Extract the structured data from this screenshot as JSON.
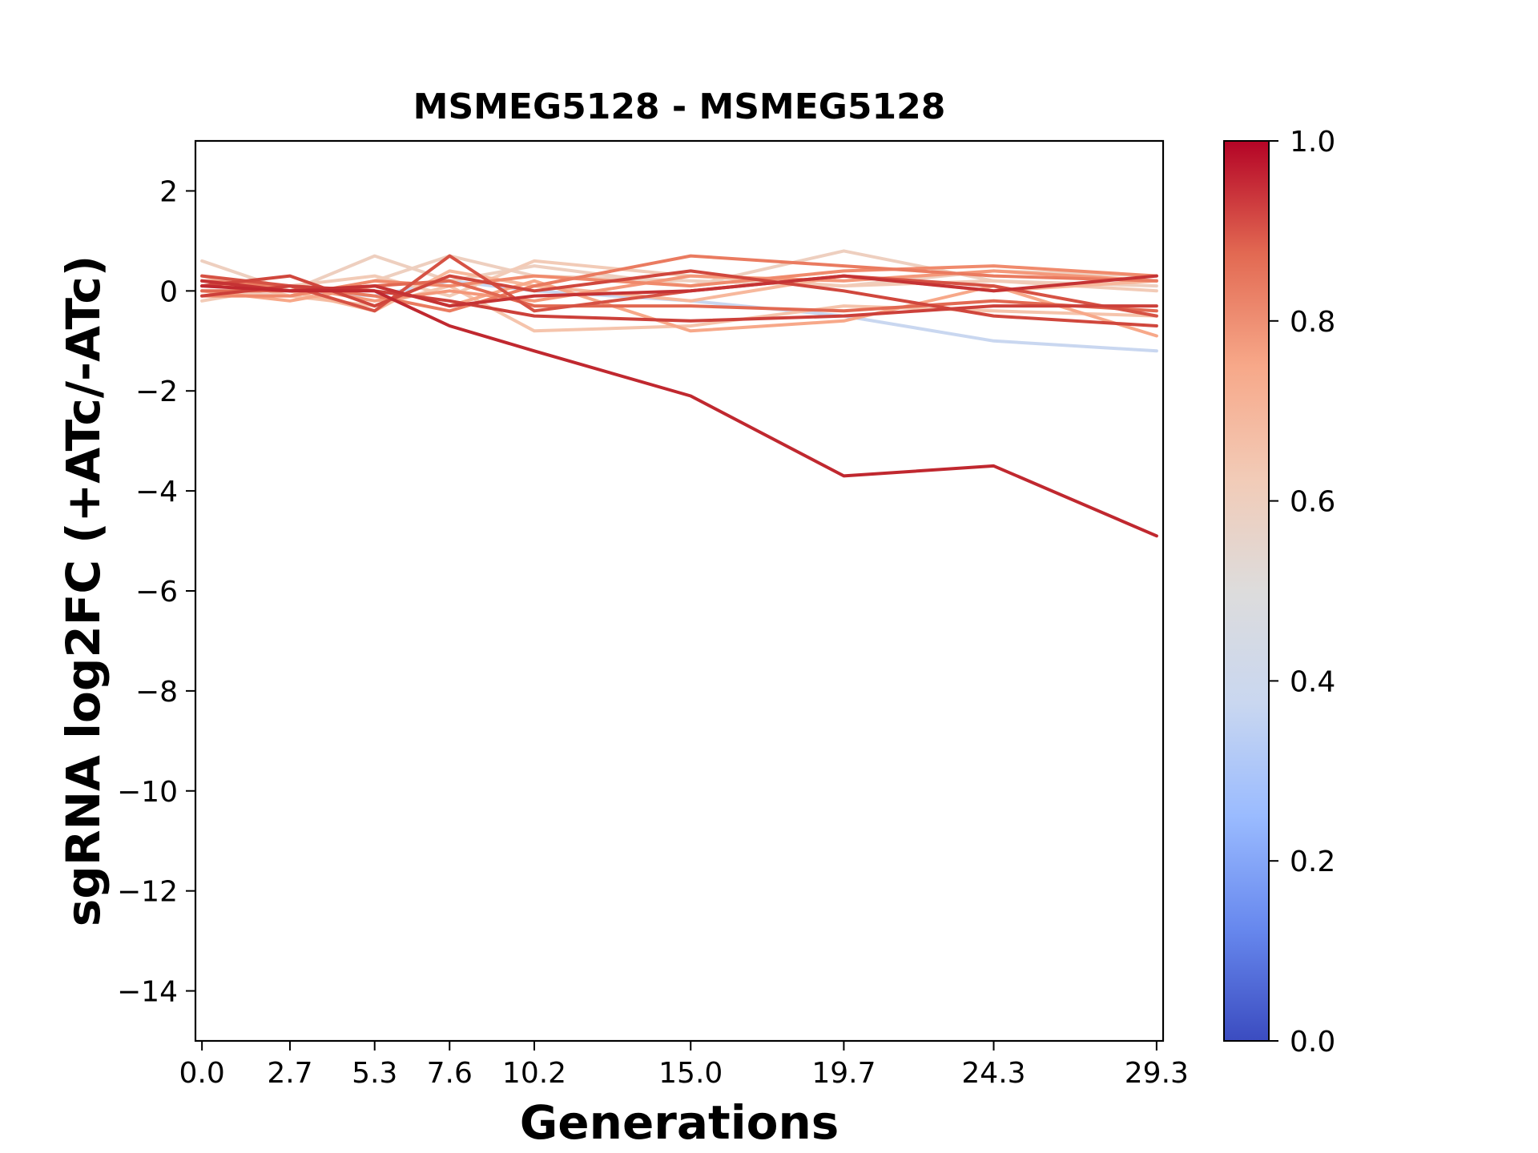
{
  "chart_data": {
    "type": "line",
    "title": "MSMEG5128 - MSMEG5128",
    "xlabel": "Generations",
    "ylabel": "sgRNA log2FC (+ATc/-ATc)",
    "x": [
      0.0,
      2.7,
      5.3,
      7.6,
      10.2,
      15.0,
      19.7,
      24.3,
      29.3
    ],
    "x_tick_labels": [
      "0.0",
      "2.7",
      "5.3",
      "7.6",
      "10.2",
      "15.0",
      "19.7",
      "24.3",
      "29.3"
    ],
    "xlim": [
      -0.2,
      29.5
    ],
    "ylim": [
      -15,
      3
    ],
    "y_ticks": [
      2,
      0,
      -2,
      -4,
      -6,
      -8,
      -10,
      -12,
      -14
    ],
    "y_tick_labels": [
      "2",
      "0",
      "−2",
      "−4",
      "−6",
      "−8",
      "−10",
      "−12",
      "−14"
    ],
    "grid": false,
    "colorbar": {
      "colormap": "coolwarm",
      "range": [
        0.0,
        1.0
      ],
      "tick_values": [
        0.0,
        0.2,
        0.4,
        0.6,
        0.8,
        1.0
      ],
      "tick_labels": [
        "0.0",
        "0.2",
        "0.4",
        "0.6",
        "0.8",
        "1.0"
      ],
      "stops": [
        "#3b4cc0",
        "#6788ee",
        "#9abbff",
        "#c9d7f0",
        "#dddcdc",
        "#f2cbb7",
        "#f7a889",
        "#e26952",
        "#b40426"
      ]
    },
    "series": [
      {
        "color": "#c9d7f0",
        "values": [
          0.1,
          0.0,
          -0.1,
          0.2,
          0.0,
          -0.2,
          -0.5,
          -1.0,
          -1.2
        ]
      },
      {
        "color": "#eecfbf",
        "values": [
          0.6,
          0.0,
          0.7,
          0.2,
          0.5,
          0.1,
          0.8,
          0.2,
          0.1
        ]
      },
      {
        "color": "#eecfbf",
        "values": [
          0.0,
          -0.1,
          0.2,
          0.7,
          0.3,
          0.2,
          0.1,
          0.4,
          0.3
        ]
      },
      {
        "color": "#f2cbb7",
        "values": [
          -0.2,
          0.1,
          0.3,
          -0.1,
          0.6,
          0.3,
          0.1,
          0.2,
          0.0
        ]
      },
      {
        "color": "#f5c4ac",
        "values": [
          0.3,
          -0.1,
          -0.3,
          0.1,
          -0.8,
          -0.7,
          -0.3,
          -0.4,
          -0.5
        ]
      },
      {
        "color": "#f7b89c",
        "values": [
          0.2,
          0.0,
          -0.4,
          0.4,
          0.1,
          -0.2,
          0.3,
          0.0,
          0.2
        ]
      },
      {
        "color": "#f7a889",
        "values": [
          0.0,
          -0.2,
          0.1,
          -0.3,
          0.2,
          -0.8,
          -0.6,
          0.1,
          -0.9
        ]
      },
      {
        "color": "#f4987a",
        "values": [
          0.1,
          0.1,
          -0.2,
          0.0,
          -0.2,
          0.3,
          0.2,
          0.4,
          0.2
        ]
      },
      {
        "color": "#f08a6c",
        "values": [
          -0.1,
          -0.1,
          0.2,
          0.1,
          0.3,
          0.1,
          0.4,
          0.5,
          0.3
        ]
      },
      {
        "color": "#ea7b60",
        "values": [
          0.2,
          0.1,
          -0.1,
          -0.4,
          0.1,
          0.7,
          0.5,
          0.3,
          0.2
        ]
      },
      {
        "color": "#e26952",
        "values": [
          0.0,
          0.0,
          0.1,
          0.2,
          -0.3,
          -0.3,
          -0.4,
          -0.2,
          -0.4
        ]
      },
      {
        "color": "#d65244",
        "values": [
          0.3,
          0.1,
          -0.4,
          0.7,
          -0.4,
          0.0,
          0.3,
          0.1,
          -0.5
        ]
      },
      {
        "color": "#d0473d",
        "values": [
          0.1,
          0.3,
          -0.3,
          0.3,
          0.0,
          0.4,
          0.0,
          -0.5,
          -0.7
        ]
      },
      {
        "color": "#cc403a",
        "values": [
          -0.1,
          0.1,
          0.0,
          -0.2,
          -0.5,
          -0.6,
          -0.5,
          -0.3,
          -0.3
        ]
      },
      {
        "color": "#c53334",
        "values": [
          0.2,
          0.0,
          0.1,
          -0.3,
          -0.1,
          0.0,
          0.3,
          0.0,
          0.3
        ]
      },
      {
        "color": "#c0282f",
        "values": [
          0.1,
          0.0,
          0.0,
          -0.7,
          -1.2,
          -2.1,
          -3.7,
          -3.5,
          -4.9
        ]
      }
    ]
  }
}
